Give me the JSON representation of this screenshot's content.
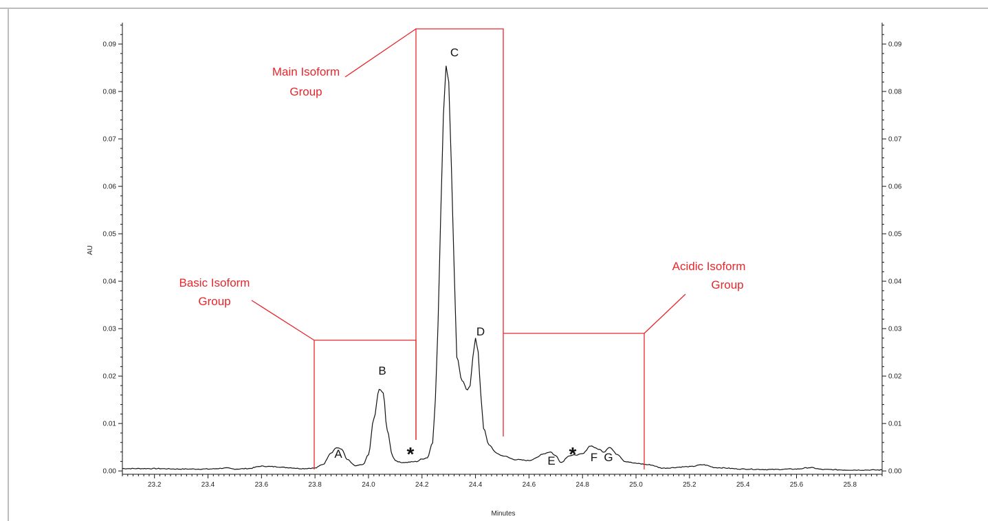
{
  "chart_data": {
    "type": "line",
    "xlabel": "Minutes",
    "ylabel": "AU",
    "xlim": [
      23.08,
      25.92
    ],
    "ylim": [
      -0.0007,
      0.0945
    ],
    "x_ticks": [
      "23.2",
      "23.4",
      "23.6",
      "23.8",
      "24.0",
      "24.2",
      "24.4",
      "24.6",
      "24.8",
      "25.0",
      "25.2",
      "25.4",
      "25.6",
      "25.8"
    ],
    "y_ticks": [
      "0.00",
      "0.01",
      "0.02",
      "0.03",
      "0.04",
      "0.05",
      "0.06",
      "0.07",
      "0.08",
      "0.09"
    ],
    "series": [
      {
        "color": "#111111",
        "x": [
          23.08,
          23.2,
          23.3,
          23.4,
          23.47,
          23.5,
          23.55,
          23.6,
          23.65,
          23.7,
          23.75,
          23.8,
          23.83,
          23.86,
          23.88,
          23.9,
          23.92,
          23.95,
          23.98,
          24.0,
          24.02,
          24.04,
          24.055,
          24.07,
          24.09,
          24.1,
          24.12,
          24.14,
          24.16,
          24.18,
          24.2,
          24.22,
          24.24,
          24.25,
          24.26,
          24.27,
          24.28,
          24.29,
          24.3,
          24.31,
          24.32,
          24.33,
          24.35,
          24.37,
          24.38,
          24.39,
          24.4,
          24.41,
          24.42,
          24.43,
          24.45,
          24.48,
          24.5,
          24.55,
          24.6,
          24.63,
          24.65,
          24.68,
          24.7,
          24.72,
          24.75,
          24.78,
          24.8,
          24.83,
          24.86,
          24.88,
          24.9,
          24.93,
          24.96,
          25.0,
          25.05,
          25.1,
          25.2,
          25.25,
          25.3,
          25.4,
          25.5,
          25.6,
          25.65,
          25.7,
          25.8,
          25.92
        ],
        "values": [
          0.0005,
          0.0005,
          0.0004,
          0.0004,
          0.0006,
          0.0004,
          0.0005,
          0.001,
          0.0009,
          0.0007,
          0.0005,
          0.0006,
          0.0014,
          0.0038,
          0.0049,
          0.0046,
          0.0024,
          0.0011,
          0.0013,
          0.0035,
          0.011,
          0.0172,
          0.0165,
          0.0085,
          0.0032,
          0.0022,
          0.0018,
          0.0018,
          0.0019,
          0.002,
          0.0025,
          0.0028,
          0.006,
          0.015,
          0.031,
          0.054,
          0.075,
          0.0855,
          0.082,
          0.064,
          0.043,
          0.024,
          0.019,
          0.017,
          0.018,
          0.024,
          0.028,
          0.025,
          0.016,
          0.009,
          0.0055,
          0.0037,
          0.0032,
          0.0024,
          0.0022,
          0.0028,
          0.0036,
          0.004,
          0.0032,
          0.0018,
          0.0032,
          0.0034,
          0.0036,
          0.0053,
          0.0046,
          0.004,
          0.005,
          0.0035,
          0.002,
          0.0016,
          0.0013,
          0.0006,
          0.0009,
          0.0013,
          0.0007,
          0.0004,
          0.0003,
          0.0004,
          0.0007,
          0.0003,
          0.0002,
          0.0002
        ]
      }
    ],
    "peak_labels": [
      "A",
      "B",
      "C",
      "D",
      "E",
      "F",
      "G",
      "*",
      "*"
    ],
    "annotations": {
      "main_group": [
        "Main Isoform",
        "Group"
      ],
      "basic_group": [
        "Basic Isoform",
        "Group"
      ],
      "acidic_group": [
        "Acidic Isoform",
        "Group"
      ]
    },
    "annotation_color": "#e8262a",
    "grid": false
  }
}
